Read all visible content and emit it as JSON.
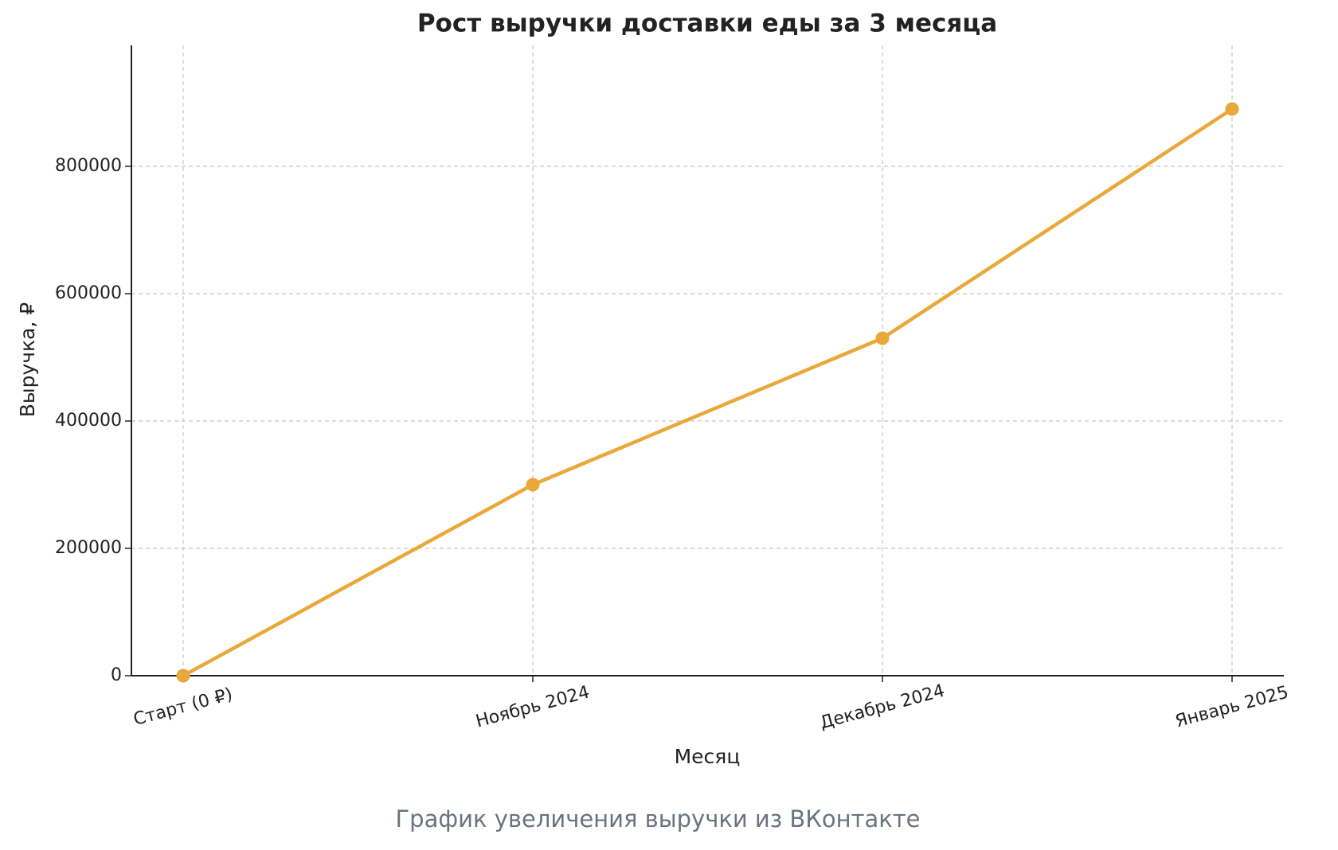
{
  "chart_data": {
    "type": "line",
    "title": "Рост выручки доставки еды за 3 месяца",
    "x_label": "Месяц",
    "y_label": "Выручка, ₽",
    "categories": [
      "Старт (0 ₽)",
      "Ноябрь 2024",
      "Декабрь 2024",
      "Январь 2025"
    ],
    "series": [
      {
        "color": "#eba83a",
        "values": [
          0,
          300000,
          530000,
          890000
        ]
      }
    ],
    "ylim": [
      0,
      990000
    ],
    "yticks": [
      0,
      200000,
      400000,
      600000,
      800000
    ],
    "grid": true
  },
  "caption": "График увеличения выручки из ВКонтакте"
}
